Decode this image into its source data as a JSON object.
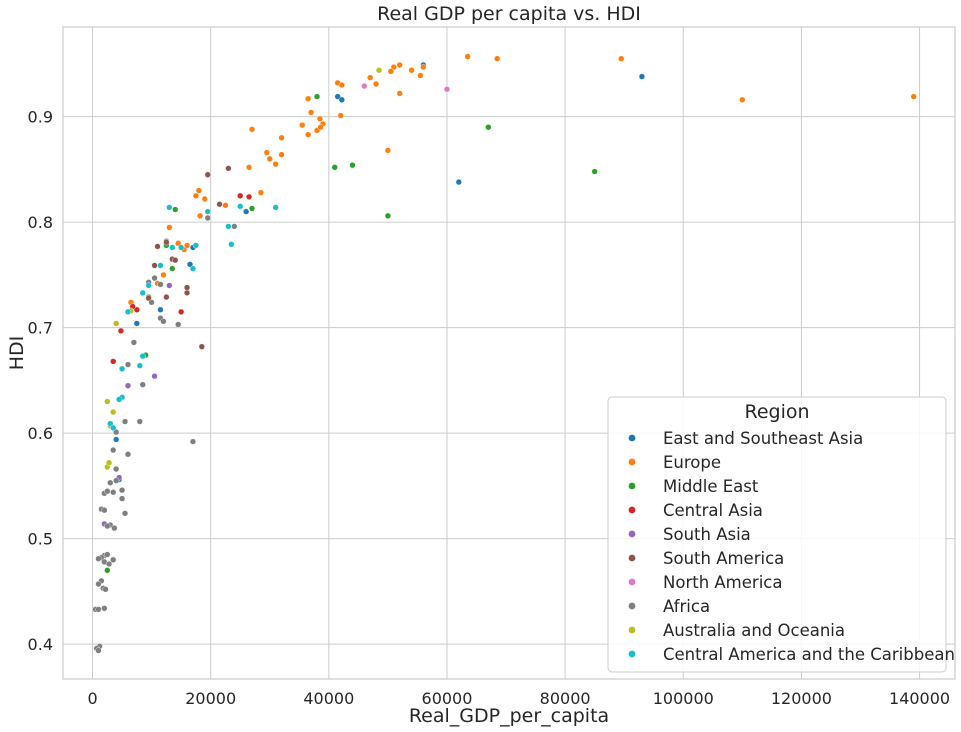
{
  "chart_data": {
    "type": "scatter",
    "title": "Real GDP per capita vs. HDI",
    "xlabel": "Real_GDP_per_capita",
    "ylabel": "HDI",
    "xlim": [
      -5000,
      146000
    ],
    "ylim": [
      0.367,
      0.985
    ],
    "x_ticks": [
      0,
      20000,
      40000,
      60000,
      80000,
      100000,
      120000,
      140000
    ],
    "y_ticks": [
      0.4,
      0.5,
      0.6,
      0.7,
      0.8,
      0.9
    ],
    "x_tick_labels": [
      "0",
      "20000",
      "40000",
      "60000",
      "80000",
      "100000",
      "120000",
      "140000"
    ],
    "y_tick_labels": [
      "0.4",
      "0.5",
      "0.6",
      "0.7",
      "0.8",
      "0.9"
    ],
    "grid": true,
    "legend": {
      "title": "Region",
      "placement": "lower-right"
    },
    "series": [
      {
        "name": "East and Southeast Asia",
        "color": "#1f77b4",
        "points": [
          [
            56000,
            0.949
          ],
          [
            93000,
            0.938
          ],
          [
            41500,
            0.919
          ],
          [
            42200,
            0.916
          ],
          [
            62000,
            0.838
          ],
          [
            17000,
            0.776
          ],
          [
            16500,
            0.76
          ],
          [
            26000,
            0.81
          ],
          [
            11500,
            0.717
          ],
          [
            7500,
            0.704
          ],
          [
            4000,
            0.594
          ],
          [
            4500,
            0.556
          ]
        ]
      },
      {
        "name": "Europe",
        "color": "#ff7f0e",
        "points": [
          [
            63500,
            0.957
          ],
          [
            68500,
            0.955
          ],
          [
            89500,
            0.955
          ],
          [
            52000,
            0.949
          ],
          [
            56000,
            0.947
          ],
          [
            51000,
            0.947
          ],
          [
            54000,
            0.944
          ],
          [
            50500,
            0.943
          ],
          [
            48000,
            0.931
          ],
          [
            41500,
            0.932
          ],
          [
            42200,
            0.93
          ],
          [
            47000,
            0.937
          ],
          [
            55500,
            0.939
          ],
          [
            52000,
            0.922
          ],
          [
            36500,
            0.917
          ],
          [
            110000,
            0.916
          ],
          [
            139000,
            0.919
          ],
          [
            37000,
            0.904
          ],
          [
            35500,
            0.892
          ],
          [
            38500,
            0.898
          ],
          [
            42000,
            0.901
          ],
          [
            39000,
            0.893
          ],
          [
            38000,
            0.887
          ],
          [
            36500,
            0.883
          ],
          [
            38600,
            0.89
          ],
          [
            27000,
            0.888
          ],
          [
            32000,
            0.88
          ],
          [
            29500,
            0.866
          ],
          [
            32000,
            0.864
          ],
          [
            30000,
            0.86
          ],
          [
            31000,
            0.855
          ],
          [
            26500,
            0.852
          ],
          [
            50000,
            0.868
          ],
          [
            28500,
            0.828
          ],
          [
            18000,
            0.83
          ],
          [
            17500,
            0.825
          ],
          [
            19000,
            0.822
          ],
          [
            22500,
            0.816
          ],
          [
            18200,
            0.806
          ],
          [
            13000,
            0.795
          ],
          [
            15500,
            0.774
          ],
          [
            12500,
            0.78
          ],
          [
            14500,
            0.78
          ],
          [
            16000,
            0.778
          ],
          [
            12000,
            0.75
          ],
          [
            11000,
            0.742
          ],
          [
            6500,
            0.724
          ]
        ]
      },
      {
        "name": "Middle East",
        "color": "#2ca02c",
        "points": [
          [
            38000,
            0.919
          ],
          [
            67000,
            0.89
          ],
          [
            44000,
            0.854
          ],
          [
            41000,
            0.852
          ],
          [
            85000,
            0.848
          ],
          [
            50000,
            0.806
          ],
          [
            27000,
            0.813
          ],
          [
            14000,
            0.812
          ],
          [
            12500,
            0.778
          ],
          [
            13500,
            0.756
          ],
          [
            9500,
            0.729
          ],
          [
            9000,
            0.674
          ],
          [
            2500,
            0.47
          ]
        ]
      },
      {
        "name": "Central Asia",
        "color": "#d62728",
        "points": [
          [
            25000,
            0.825
          ],
          [
            26500,
            0.824
          ],
          [
            15000,
            0.715
          ],
          [
            7500,
            0.717
          ],
          [
            6800,
            0.72
          ],
          [
            4800,
            0.697
          ],
          [
            3500,
            0.668
          ]
        ]
      },
      {
        "name": "South Asia",
        "color": "#9467bd",
        "points": [
          [
            12500,
            0.782
          ],
          [
            13000,
            0.74
          ],
          [
            10500,
            0.654
          ],
          [
            6000,
            0.645
          ],
          [
            4500,
            0.558
          ],
          [
            2000,
            0.514
          ]
        ]
      },
      {
        "name": "South America",
        "color": "#8c564b",
        "points": [
          [
            23000,
            0.851
          ],
          [
            19500,
            0.845
          ],
          [
            21500,
            0.817
          ],
          [
            11000,
            0.777
          ],
          [
            12500,
            0.781
          ],
          [
            13500,
            0.765
          ],
          [
            14000,
            0.764
          ],
          [
            10500,
            0.759
          ],
          [
            16000,
            0.738
          ],
          [
            16000,
            0.733
          ],
          [
            9500,
            0.728
          ],
          [
            12500,
            0.729
          ],
          [
            18500,
            0.682
          ]
        ]
      },
      {
        "name": "North America",
        "color": "#e377c2",
        "points": [
          [
            60000,
            0.926
          ],
          [
            46000,
            0.929
          ]
        ]
      },
      {
        "name": "Africa",
        "color": "#7f7f7f",
        "points": [
          [
            19500,
            0.804
          ],
          [
            24000,
            0.796
          ],
          [
            10500,
            0.747
          ],
          [
            9500,
            0.743
          ],
          [
            11500,
            0.741
          ],
          [
            10000,
            0.724
          ],
          [
            11500,
            0.709
          ],
          [
            12000,
            0.706
          ],
          [
            14500,
            0.703
          ],
          [
            7000,
            0.686
          ],
          [
            6000,
            0.665
          ],
          [
            8500,
            0.646
          ],
          [
            5500,
            0.611
          ],
          [
            8000,
            0.611
          ],
          [
            17000,
            0.592
          ],
          [
            4000,
            0.601
          ],
          [
            3500,
            0.584
          ],
          [
            6000,
            0.58
          ],
          [
            4000,
            0.566
          ],
          [
            3000,
            0.553
          ],
          [
            4000,
            0.555
          ],
          [
            5000,
            0.546
          ],
          [
            3500,
            0.544
          ],
          [
            2000,
            0.543
          ],
          [
            5000,
            0.538
          ],
          [
            2500,
            0.545
          ],
          [
            1500,
            0.528
          ],
          [
            2000,
            0.527
          ],
          [
            5500,
            0.524
          ],
          [
            3000,
            0.513
          ],
          [
            2500,
            0.512
          ],
          [
            3700,
            0.51
          ],
          [
            2000,
            0.484
          ],
          [
            1500,
            0.482
          ],
          [
            1000,
            0.481
          ],
          [
            3500,
            0.48
          ],
          [
            2000,
            0.478
          ],
          [
            2800,
            0.476
          ],
          [
            2500,
            0.485
          ],
          [
            1500,
            0.46
          ],
          [
            1000,
            0.457
          ],
          [
            1800,
            0.453
          ],
          [
            2200,
            0.452
          ],
          [
            500,
            0.433
          ],
          [
            1000,
            0.433
          ],
          [
            2000,
            0.434
          ],
          [
            1200,
            0.398
          ],
          [
            700,
            0.396
          ],
          [
            1000,
            0.394
          ]
        ]
      },
      {
        "name": "Australia and Oceania",
        "color": "#bcbd22",
        "points": [
          [
            48500,
            0.944
          ],
          [
            2500,
            0.63
          ],
          [
            3500,
            0.62
          ],
          [
            4000,
            0.704
          ],
          [
            6500,
            0.716
          ],
          [
            3000,
            0.607
          ],
          [
            2500,
            0.568
          ],
          [
            2800,
            0.572
          ]
        ]
      },
      {
        "name": "Central America and the Caribbean",
        "color": "#17becf",
        "points": [
          [
            13000,
            0.814
          ],
          [
            31000,
            0.814
          ],
          [
            25000,
            0.815
          ],
          [
            19500,
            0.81
          ],
          [
            23000,
            0.796
          ],
          [
            23500,
            0.779
          ],
          [
            17500,
            0.778
          ],
          [
            13500,
            0.776
          ],
          [
            15000,
            0.776
          ],
          [
            17000,
            0.756
          ],
          [
            11500,
            0.759
          ],
          [
            9500,
            0.74
          ],
          [
            8500,
            0.733
          ],
          [
            6000,
            0.715
          ],
          [
            8500,
            0.673
          ],
          [
            8000,
            0.664
          ],
          [
            5000,
            0.661
          ],
          [
            5000,
            0.634
          ],
          [
            4500,
            0.632
          ],
          [
            3000,
            0.609
          ],
          [
            3500,
            0.605
          ]
        ]
      }
    ]
  }
}
